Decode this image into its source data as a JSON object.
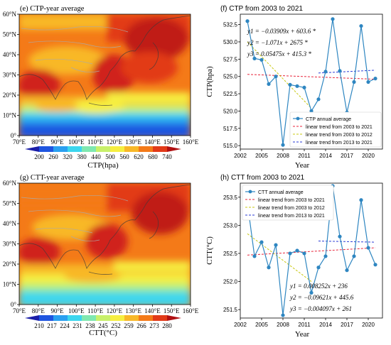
{
  "maps": [
    {
      "title": "(e) CTP-year average",
      "lat_labels": [
        "0°",
        "10°N",
        "20°N",
        "30°N",
        "40°N",
        "50°N",
        "60°N"
      ],
      "lon_labels": [
        "70°E",
        "80°E",
        "90°E",
        "100°E",
        "110°E",
        "120°E",
        "130°E",
        "140°E",
        "150°E",
        "160°E"
      ],
      "colorbar_ticks": [
        "200",
        "260",
        "320",
        "380",
        "440",
        "500",
        "560",
        "620",
        "680",
        "740"
      ],
      "colorbar_label": "CTP(hpa)"
    },
    {
      "title": "(g) CTT-year average",
      "lat_labels": [
        "0°",
        "10°N",
        "20°N",
        "30°N",
        "40°N",
        "50°N",
        "60°N"
      ],
      "lon_labels": [
        "70°E",
        "80°E",
        "90°E",
        "100°E",
        "110°E",
        "120°E",
        "130°E",
        "140°E",
        "150°E",
        "160°E"
      ],
      "colorbar_ticks": [
        "210",
        "217",
        "224",
        "231",
        "238",
        "245",
        "252",
        "259",
        "266",
        "273",
        "280"
      ],
      "colorbar_label": "CTT(°C)"
    }
  ],
  "palette": [
    "#1b1ea8",
    "#1f55e0",
    "#2aa0f0",
    "#3cd6ee",
    "#7fe8b0",
    "#c8f06a",
    "#f6ee40",
    "#f8b828",
    "#f47a18",
    "#e23a18",
    "#b01012"
  ],
  "equations": {
    "ctp": [
      "y1 = −0.03909x + 603.6 *",
      "y2 = −1.071x + 2675 *",
      "y3 = 0.05475x + 415.3 *"
    ],
    "ctt": [
      "y1 = 0.008252x + 236",
      "y2 = −0.09621x + 445.6",
      "y3 = −0.004097x + 261"
    ]
  },
  "chart_data": [
    {
      "type": "line",
      "title": "(f) CTP from 2003 to 2021",
      "xlabel": "Year",
      "ylabel": "CTP(hpa)",
      "xlim": [
        2002,
        2022
      ],
      "ylim": [
        514.5,
        534
      ],
      "xticks": [
        "2002",
        "2005",
        "2008",
        "2011",
        "2014",
        "2017",
        "2020"
      ],
      "yticks": [
        "515.0",
        "517.5",
        "520.0",
        "522.5",
        "525.0",
        "527.5",
        "530.0",
        "532.5"
      ],
      "legend_position": "lower-right",
      "x": [
        2003,
        2004,
        2005,
        2006,
        2007,
        2008,
        2009,
        2010,
        2011,
        2012,
        2013,
        2014,
        2015,
        2016,
        2017,
        2018,
        2019,
        2020,
        2021
      ],
      "series": [
        {
          "name": "CTP annual average",
          "color": "#2e86c1",
          "values": [
            533.0,
            527.6,
            527.4,
            523.9,
            525.0,
            515.1,
            523.8,
            523.6,
            523.4,
            520.0,
            521.7,
            525.7,
            533.3,
            525.8,
            519.8,
            524.2,
            532.3,
            524.2,
            524.7
          ]
        }
      ],
      "trends": [
        {
          "name": "linear trend from 2003 to 2021",
          "color": "#e8253b",
          "x": [
            2003,
            2021
          ],
          "y": [
            525.3,
            524.6
          ]
        },
        {
          "name": "linear trend from 2003 to 2012",
          "color": "#c8c812",
          "x": [
            2003,
            2012
          ],
          "y": [
            530.0,
            520.4
          ]
        },
        {
          "name": "linear trend from 2013 to 2021",
          "color": "#2a3bd6",
          "x": [
            2013,
            2021
          ],
          "y": [
            525.5,
            525.9
          ]
        }
      ]
    },
    {
      "type": "line",
      "title": "(h) CTT from 2003 to 2021",
      "xlabel": "Year",
      "ylabel": "CTT(°C)",
      "xlim": [
        2002,
        2022
      ],
      "ylim": [
        251.35,
        253.75
      ],
      "xticks": [
        "2002",
        "2005",
        "2008",
        "2011",
        "2014",
        "2017",
        "2020"
      ],
      "yticks": [
        "251.5",
        "252.0",
        "252.5",
        "253.0",
        "253.5"
      ],
      "legend_position": "upper-left",
      "x": [
        2003,
        2004,
        2005,
        2006,
        2007,
        2008,
        2009,
        2010,
        2011,
        2012,
        2013,
        2014,
        2015,
        2016,
        2017,
        2018,
        2019,
        2020,
        2021
      ],
      "series": [
        {
          "name": "CTT annual average",
          "color": "#2e86c1",
          "values": [
            253.4,
            252.45,
            252.7,
            252.25,
            252.65,
            251.4,
            252.5,
            252.55,
            252.5,
            251.8,
            252.25,
            252.45,
            253.7,
            252.8,
            252.2,
            252.45,
            253.45,
            252.6,
            252.3
          ]
        }
      ],
      "trends": [
        {
          "name": "linear trend from 2003 to 2021",
          "color": "#e8253b",
          "x": [
            2003,
            2021
          ],
          "y": [
            252.47,
            252.6
          ]
        },
        {
          "name": "linear trend from 2003 to 2012",
          "color": "#c8c812",
          "x": [
            2003,
            2012
          ],
          "y": [
            252.85,
            252.0
          ]
        },
        {
          "name": "linear trend from 2013 to 2021",
          "color": "#2a3bd6",
          "x": [
            2013,
            2021
          ],
          "y": [
            252.72,
            252.7
          ]
        }
      ]
    }
  ]
}
